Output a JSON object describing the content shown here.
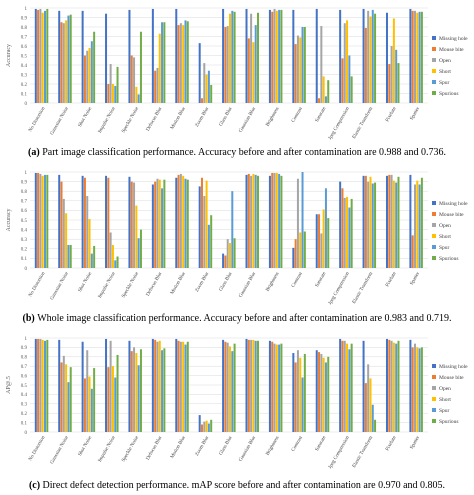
{
  "defects": [
    "Missing hole",
    "Mouse bite",
    "Open",
    "Short",
    "Spur",
    "Spurious"
  ],
  "colors": [
    "#4472C4",
    "#ED7D31",
    "#A5A5A5",
    "#FFC000",
    "#5B9BD5",
    "#70AD47"
  ],
  "categories": [
    "No Distortion",
    "Gaussian Noise",
    "Shot Noise",
    "Impulse Noise",
    "Speckle Noise",
    "Defocus Blur",
    "Motion Blur",
    "Zoom Blur",
    "Glass Blur",
    "Gaussian Blur",
    "Brightness",
    "Contrast",
    "Saturate",
    "Jpeg Compression",
    "Elastic Transform",
    "Pixelate",
    "Spatter"
  ],
  "chart_data": [
    {
      "type": "bar",
      "ylabel": "Accuracy",
      "ylim": [
        0,
        1
      ],
      "yticks": [
        "0",
        "0.1",
        "0.2",
        "0.3",
        "0.4",
        "0.5",
        "0.6",
        "0.7",
        "0.8",
        "0.9",
        "1"
      ],
      "caption_label": "(a)",
      "caption_text": "Part image classification performance. Accuracy before and after contamination are 0.988 and 0.736.",
      "series": [
        {
          "name": "Missing hole",
          "values": [
            0.99,
            0.97,
            0.97,
            0.94,
            0.98,
            0.99,
            0.99,
            0.63,
            0.99,
            0.99,
            0.98,
            0.98,
            0.99,
            0.98,
            0.99,
            0.95,
            0.99
          ]
        },
        {
          "name": "Mouse bite",
          "values": [
            0.98,
            0.85,
            0.5,
            0.2,
            0.5,
            0.34,
            0.82,
            0.05,
            0.8,
            0.68,
            0.96,
            0.62,
            0.05,
            0.47,
            0.79,
            0.41,
            0.97
          ]
        },
        {
          "name": "Open",
          "values": [
            0.99,
            0.84,
            0.55,
            0.41,
            0.48,
            0.37,
            0.84,
            0.42,
            0.81,
            0.94,
            0.99,
            0.71,
            0.81,
            0.84,
            0.97,
            0.6,
            0.97
          ]
        },
        {
          "name": "Short",
          "values": [
            0.95,
            0.87,
            0.58,
            0.2,
            0.17,
            0.73,
            0.82,
            0.3,
            0.94,
            0.64,
            0.97,
            0.69,
            0.28,
            0.87,
            0.91,
            0.89,
            0.95
          ]
        },
        {
          "name": "Spur",
          "values": [
            0.97,
            0.92,
            0.65,
            0.18,
            0.09,
            0.85,
            0.87,
            0.34,
            0.97,
            0.82,
            0.98,
            0.8,
            0.07,
            0.5,
            0.98,
            0.56,
            0.96
          ]
        },
        {
          "name": "Spurious",
          "values": [
            0.99,
            0.93,
            0.75,
            0.38,
            0.75,
            0.85,
            0.86,
            0.19,
            0.96,
            0.95,
            0.98,
            0.8,
            0.24,
            0.28,
            0.94,
            0.42,
            0.96
          ]
        }
      ]
    },
    {
      "type": "bar",
      "ylabel": "Accuracy",
      "ylim": [
        0,
        1
      ],
      "yticks": [
        "0",
        "0.1",
        "0.2",
        "0.3",
        "0.4",
        "0.5",
        "0.6",
        "0.7",
        "0.8",
        "0.9",
        "1"
      ],
      "caption_label": "(b)",
      "caption_text": "Whole image classification performance. Accuracy before and after contamination are 0.983 and 0.719.",
      "series": [
        {
          "name": "Missing hole",
          "values": [
            0.99,
            0.97,
            0.96,
            0.96,
            0.95,
            0.87,
            0.94,
            0.85,
            0.15,
            0.97,
            0.96,
            0.21,
            0.56,
            0.9,
            0.96,
            0.96,
            0.97
          ]
        },
        {
          "name": "Mouse bite",
          "values": [
            0.99,
            0.9,
            0.94,
            0.94,
            0.9,
            0.9,
            0.97,
            0.94,
            0.13,
            0.98,
            0.99,
            0.3,
            0.56,
            0.83,
            0.96,
            0.97,
            0.34
          ]
        },
        {
          "name": "Open",
          "values": [
            0.98,
            0.72,
            0.75,
            0.37,
            0.89,
            0.93,
            0.98,
            0.75,
            0.3,
            0.96,
            0.99,
            0.93,
            0.36,
            0.73,
            0.9,
            0.97,
            0.87
          ]
        },
        {
          "name": "Short",
          "values": [
            0.96,
            0.57,
            0.51,
            0.24,
            0.65,
            0.92,
            0.96,
            0.91,
            0.26,
            0.98,
            0.99,
            0.37,
            0.61,
            0.74,
            0.95,
            0.91,
            0.91
          ]
        },
        {
          "name": "Spur",
          "values": [
            0.97,
            0.24,
            0.15,
            0.08,
            0.31,
            0.83,
            0.93,
            0.45,
            0.8,
            0.97,
            0.98,
            1.0,
            0.83,
            0.63,
            0.88,
            0.89,
            0.87
          ]
        },
        {
          "name": "Spurious",
          "values": [
            0.97,
            0.24,
            0.23,
            0.12,
            0.4,
            0.92,
            0.92,
            0.55,
            0.31,
            0.96,
            0.96,
            0.38,
            0.52,
            0.72,
            0.89,
            0.95,
            0.94
          ]
        }
      ]
    },
    {
      "type": "bar",
      "ylabel": "AP@.5",
      "ylim": [
        0,
        1
      ],
      "yticks": [
        "0",
        "0.1",
        "0.2",
        "0.3",
        "0.4",
        "0.5",
        "0.6",
        "0.7",
        "0.8",
        "0.9",
        "1"
      ],
      "caption_label": "(c)",
      "caption_text": "Direct defect detection performance. mAP score before and after contamination are 0.970 and 0.805.",
      "series": [
        {
          "name": "Missing hole",
          "values": [
            0.99,
            0.98,
            0.96,
            0.99,
            0.97,
            0.99,
            0.99,
            0.18,
            0.98,
            0.99,
            0.97,
            0.84,
            0.87,
            0.99,
            0.97,
            0.99,
            0.98
          ]
        },
        {
          "name": "Mouse bite",
          "values": [
            0.99,
            0.74,
            0.57,
            0.69,
            0.86,
            0.98,
            0.97,
            0.08,
            0.96,
            0.98,
            0.96,
            0.74,
            0.85,
            0.97,
            0.52,
            0.98,
            0.9
          ]
        },
        {
          "name": "Open",
          "values": [
            0.99,
            0.81,
            0.87,
            0.97,
            0.9,
            0.96,
            0.96,
            0.11,
            0.95,
            0.98,
            0.94,
            0.87,
            0.83,
            0.97,
            0.72,
            0.97,
            0.94
          ]
        },
        {
          "name": "Short",
          "values": [
            0.98,
            0.72,
            0.59,
            0.7,
            0.84,
            0.97,
            0.96,
            0.12,
            0.91,
            0.98,
            0.93,
            0.79,
            0.79,
            0.94,
            0.57,
            0.95,
            0.9
          ]
        },
        {
          "name": "Spur",
          "values": [
            0.97,
            0.53,
            0.46,
            0.58,
            0.71,
            0.87,
            0.93,
            0.09,
            0.86,
            0.97,
            0.93,
            0.58,
            0.74,
            0.88,
            0.29,
            0.94,
            0.89
          ]
        },
        {
          "name": "Spurious",
          "values": [
            0.98,
            0.69,
            0.68,
            0.82,
            0.88,
            0.89,
            0.96,
            0.13,
            0.94,
            0.97,
            0.94,
            0.83,
            0.8,
            0.94,
            0.13,
            0.97,
            0.9
          ]
        }
      ]
    }
  ]
}
